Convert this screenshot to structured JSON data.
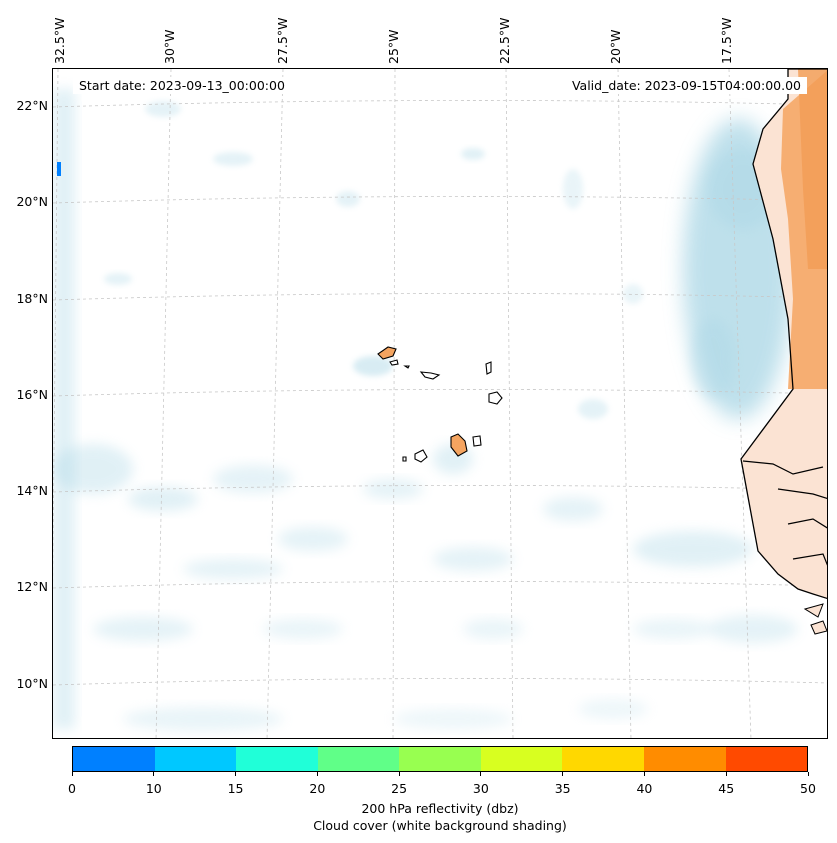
{
  "map": {
    "start_date": "Start date: 2023-09-13_00:00:00",
    "valid_date": "Valid_date: 2023-09-15T04:00:00.00",
    "lon_labels": [
      "32.5°W",
      "30°W",
      "27.5°W",
      "25°W",
      "22.5°W",
      "20°W",
      "17.5°W"
    ],
    "lat_labels": [
      "22°N",
      "20°N",
      "18°N",
      "16°N",
      "14°N",
      "12°N",
      "10°N"
    ],
    "colors": {
      "cloud_shading": "#a9d6e5",
      "land_orange": "#f4a460",
      "land_light": "#fbe3d3",
      "coastline": "#000000",
      "gridline": "#c8c8c8"
    }
  },
  "colorbar": {
    "label_line1": "200 hPa reflectivity (dbz)",
    "label_line2": "Cloud cover (white background shading)",
    "ticks": [
      "0",
      "10",
      "15",
      "20",
      "25",
      "30",
      "35",
      "40",
      "45",
      "50"
    ],
    "colors": [
      "#0080ff",
      "#00c8ff",
      "#20ffd8",
      "#60ff88",
      "#98ff50",
      "#d8ff20",
      "#ffd800",
      "#ff8c00",
      "#ff4a00"
    ]
  }
}
